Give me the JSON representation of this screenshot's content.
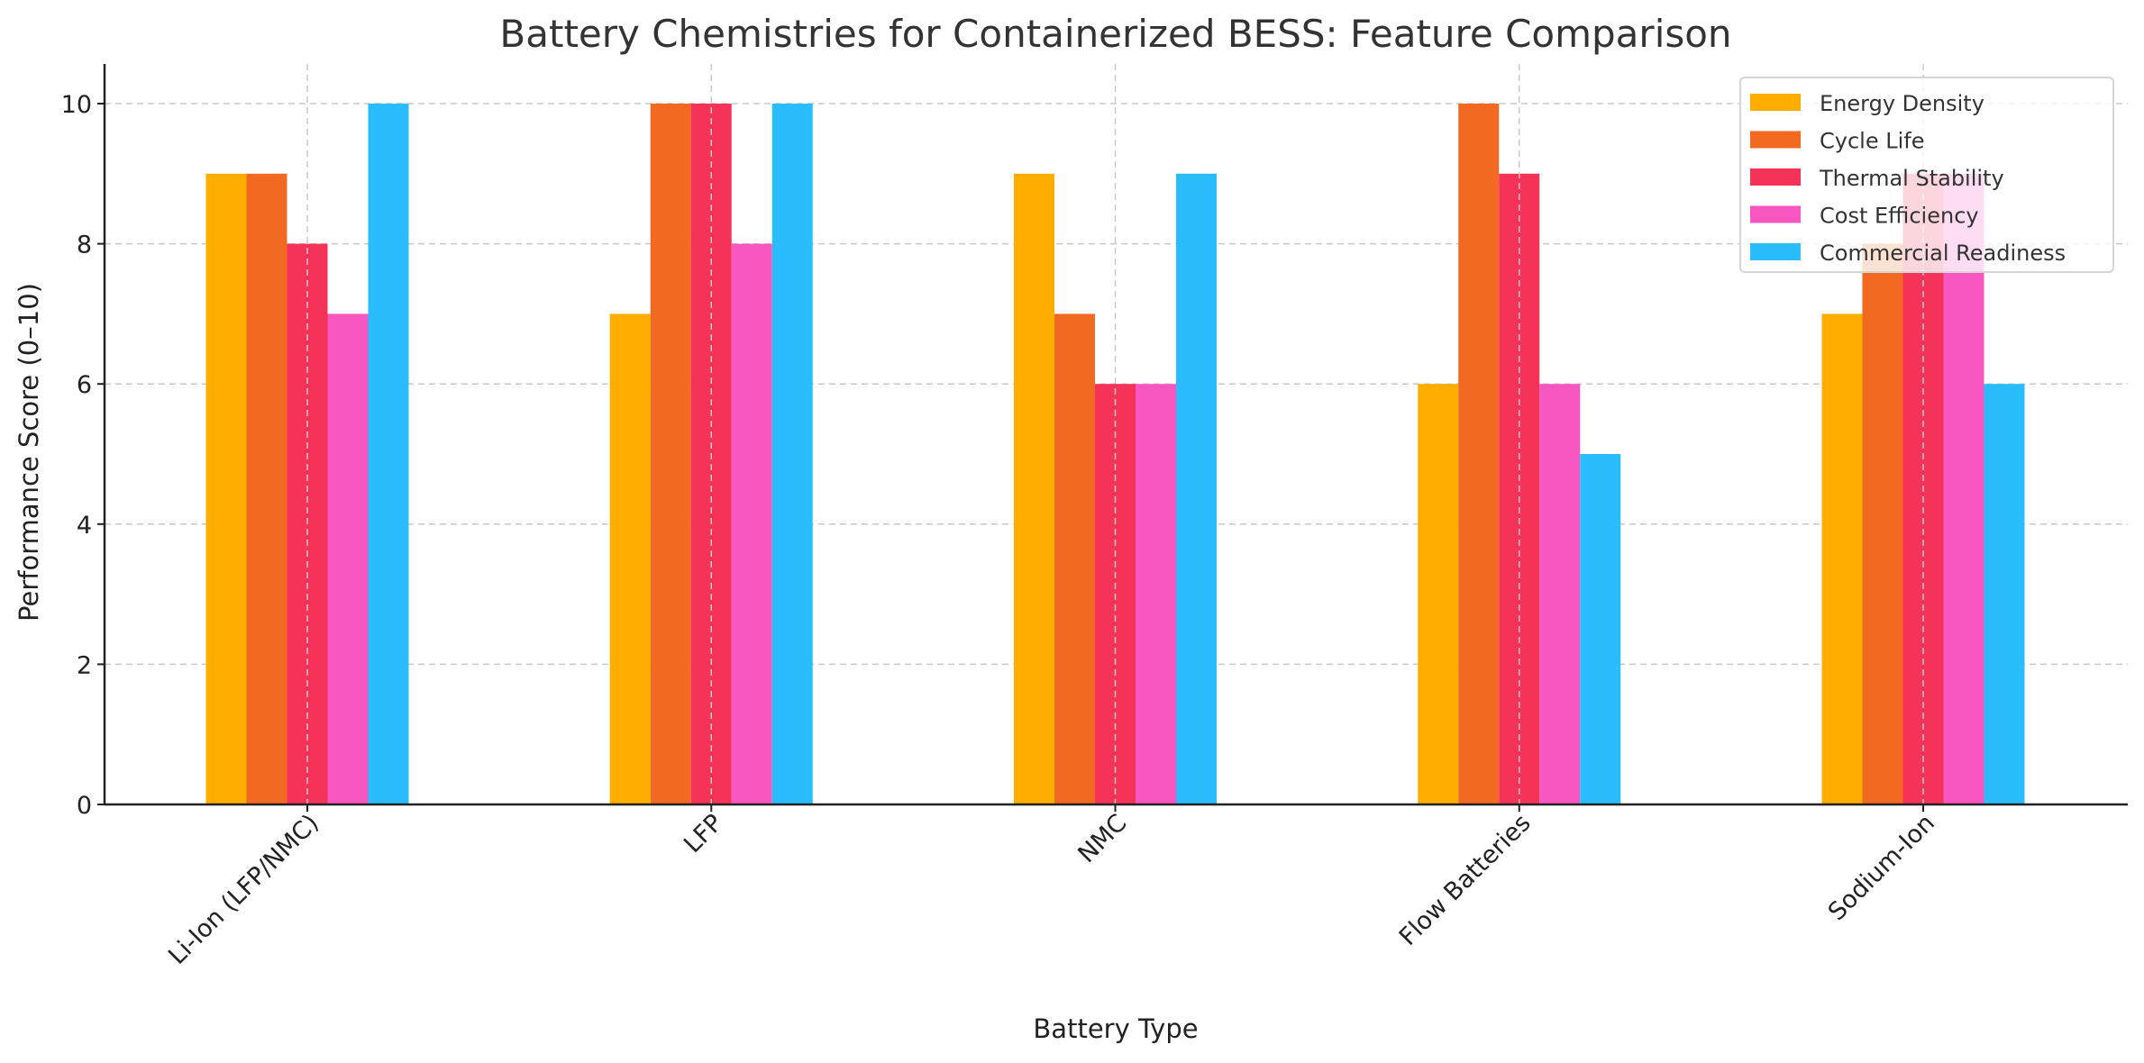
{
  "chart_data": {
    "type": "bar",
    "title": "Battery Chemistries for Containerized BESS: Feature Comparison",
    "xlabel": "Battery Type",
    "ylabel": "Performance Score (0–10)",
    "ylim": [
      0,
      10.5
    ],
    "yticks": [
      "0",
      "2",
      "4",
      "6",
      "8",
      "10"
    ],
    "grid": true,
    "legend_position": "top-right",
    "categories": [
      "Li-Ion (LFP/NMC)",
      "LFP",
      "NMC",
      "Flow Batteries",
      "Sodium-Ion"
    ],
    "series": [
      {
        "name": "Energy Density",
        "color": "#FFAE00",
        "values": [
          9,
          7,
          9,
          6,
          7
        ]
      },
      {
        "name": "Cycle Life",
        "color": "#F26A22",
        "values": [
          9,
          10,
          7,
          10,
          8
        ]
      },
      {
        "name": "Thermal Stability",
        "color": "#F53257",
        "values": [
          8,
          10,
          6,
          9,
          9
        ]
      },
      {
        "name": "Cost Efficiency",
        "color": "#F857C1",
        "values": [
          7,
          8,
          6,
          6,
          9
        ]
      },
      {
        "name": "Commercial Readiness",
        "color": "#29BDFD",
        "values": [
          10,
          10,
          9,
          5,
          6
        ]
      }
    ]
  }
}
